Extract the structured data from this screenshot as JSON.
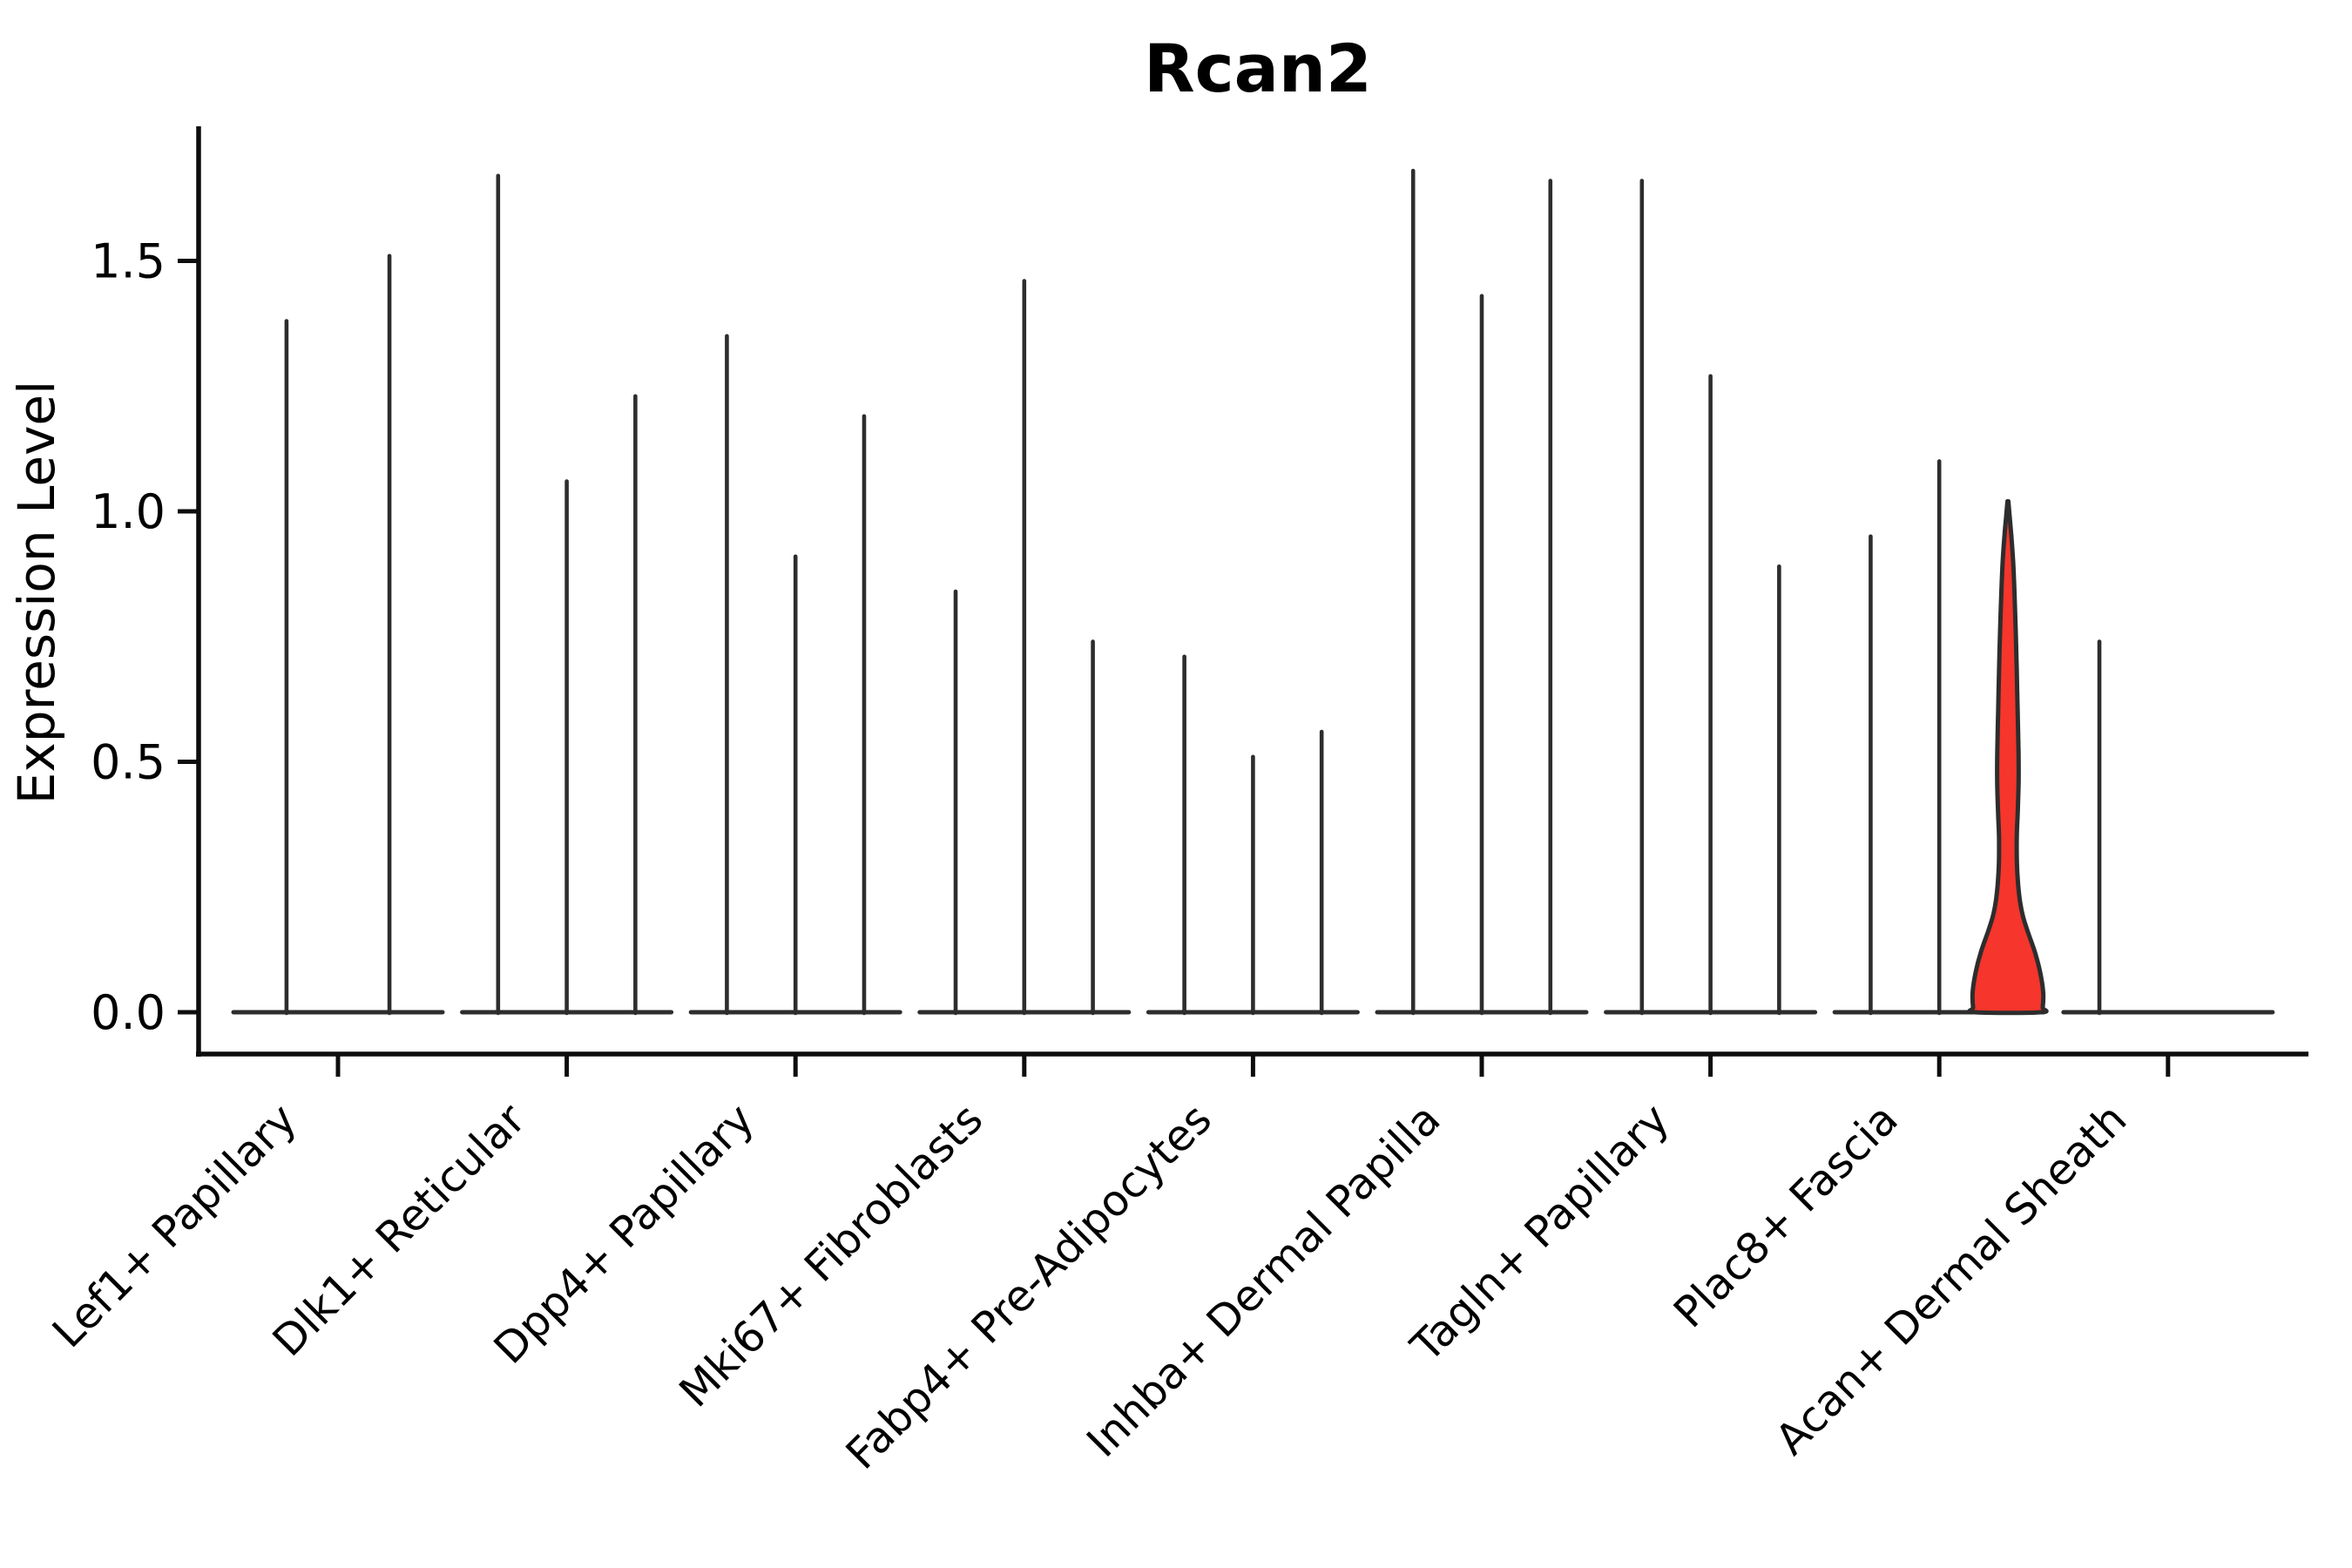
{
  "title": "Rcan2",
  "y_axis": {
    "label": "Expression Level",
    "tick_labels": [
      "1.5",
      "1.0",
      "0.5",
      "0.0"
    ],
    "tick_values": [
      1.5,
      1.0,
      0.5,
      0.0
    ]
  },
  "x_axis": {
    "categories": [
      "Lef1+ Papillary",
      "Dlk1+ Reticular",
      "Dpp4+ Papillary",
      "Mki67+ Fibroblasts",
      "Fabp4+ Pre-Adipocytes",
      "Inhba+ Dermal Papilla",
      "Tagln+ Papillary",
      "Plac8+ Fascia",
      "Acan+ Dermal Sheath"
    ]
  },
  "chart_data": {
    "type": "violin",
    "title": "Rcan2",
    "xlabel": "",
    "ylabel": "Expression Level",
    "ylim": [
      -0.08,
      1.77
    ],
    "yticks": [
      0.0,
      0.5,
      1.0,
      1.5
    ],
    "grid": false,
    "legend": "none",
    "categories": [
      "Lef1+ Papillary",
      "Dlk1+ Reticular",
      "Dpp4+ Papillary",
      "Mki67+ Fibroblasts",
      "Fabp4+ Pre-Adipocytes",
      "Inhba+ Dermal Papilla",
      "Tagln+ Papillary",
      "Plac8+ Fascia",
      "Acan+ Dermal Sheath"
    ],
    "note": "Each category shows narrow spike-like violins (near-zero width) rising from a flat base at expression 0; peak = max expression reached by each violin. The third violin of Plac8+ Fascia is a filled red violin with visible width.",
    "groups": [
      {
        "category": "Lef1+ Papillary",
        "violins": [
          {
            "pos": -0.225,
            "peak": 1.38
          },
          {
            "pos": 0.225,
            "peak": 1.51
          }
        ]
      },
      {
        "category": "Dlk1+ Reticular",
        "violins": [
          {
            "pos": -0.3,
            "peak": 1.67
          },
          {
            "pos": 0.0,
            "peak": 1.06
          },
          {
            "pos": 0.3,
            "peak": 1.23
          }
        ]
      },
      {
        "category": "Dpp4+ Papillary",
        "violins": [
          {
            "pos": -0.3,
            "peak": 1.35
          },
          {
            "pos": 0.0,
            "peak": 0.91
          },
          {
            "pos": 0.3,
            "peak": 1.19
          }
        ]
      },
      {
        "category": "Mki67+ Fibroblasts",
        "violins": [
          {
            "pos": -0.3,
            "peak": 0.84
          },
          {
            "pos": 0.0,
            "peak": 1.46
          },
          {
            "pos": 0.3,
            "peak": 0.74
          }
        ]
      },
      {
        "category": "Fabp4+ Pre-Adipocytes",
        "violins": [
          {
            "pos": -0.3,
            "peak": 0.71
          },
          {
            "pos": 0.0,
            "peak": 0.51
          },
          {
            "pos": 0.3,
            "peak": 0.56
          }
        ]
      },
      {
        "category": "Inhba+ Dermal Papilla",
        "violins": [
          {
            "pos": -0.3,
            "peak": 1.68
          },
          {
            "pos": 0.0,
            "peak": 1.43
          },
          {
            "pos": 0.3,
            "peak": 1.66
          }
        ]
      },
      {
        "category": "Tagln+ Papillary",
        "violins": [
          {
            "pos": -0.3,
            "peak": 1.66
          },
          {
            "pos": 0.0,
            "peak": 1.27
          },
          {
            "pos": 0.3,
            "peak": 0.89
          }
        ]
      },
      {
        "category": "Plac8+ Fascia",
        "violins": [
          {
            "pos": -0.3,
            "peak": 0.95
          },
          {
            "pos": 0.0,
            "peak": 1.1
          },
          {
            "pos": 0.3,
            "peak": 1.02,
            "highlighted": true,
            "fill": "#f6352c",
            "profile": [
              [
                1.02,
                0.5
              ],
              [
                0.99,
                2
              ],
              [
                0.95,
                4
              ],
              [
                0.9,
                6
              ],
              [
                0.84,
                7.5
              ],
              [
                0.76,
                9
              ],
              [
                0.68,
                10.2
              ],
              [
                0.6,
                11.2
              ],
              [
                0.52,
                12.2
              ],
              [
                0.46,
                12.3
              ],
              [
                0.4,
                11.3
              ],
              [
                0.35,
                10.2
              ],
              [
                0.3,
                10.3
              ],
              [
                0.26,
                11.5
              ],
              [
                0.22,
                14
              ],
              [
                0.19,
                17.5
              ],
              [
                0.16,
                23
              ],
              [
                0.12,
                31
              ],
              [
                0.08,
                37
              ],
              [
                0.04,
                40.5
              ],
              [
                0.01,
                40
              ],
              [
                0.0,
                38
              ]
            ]
          }
        ]
      },
      {
        "category": "Acan+ Dermal Sheath",
        "violins": [
          {
            "pos": -0.3,
            "peak": 0.74
          },
          {
            "pos": 0.0,
            "peak": 0.0
          },
          {
            "pos": 0.3,
            "peak": 0.0
          }
        ]
      }
    ],
    "style": {
      "spike_color": "#2d2d2d",
      "axis_color": "#0d0d0d",
      "text_color": "#000000",
      "highlight_fill": "#f6352c",
      "background": "#ffffff"
    }
  }
}
